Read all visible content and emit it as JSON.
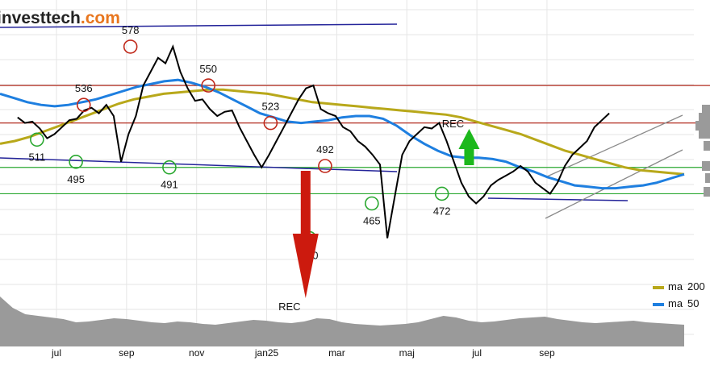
{
  "brand": {
    "name_a": "investtech",
    "name_b": ".com",
    "accent": "#e8761e"
  },
  "chart_data": {
    "type": "line",
    "title": "",
    "ylim": [
      420,
      600
    ],
    "x_ticks": [
      {
        "label": "jul",
        "i": 0
      },
      {
        "label": "sep",
        "i": 9
      },
      {
        "label": "nov",
        "i": 18
      },
      {
        "label": "jan25",
        "i": 27
      },
      {
        "label": "mar",
        "i": 36
      },
      {
        "label": "maj",
        "i": 45
      },
      {
        "label": "jul",
        "i": 54
      },
      {
        "label": "sep",
        "i": 63
      }
    ],
    "price_series": {
      "name": "",
      "color": "#000000",
      "values": [
        527,
        523,
        524,
        519,
        512,
        515,
        520,
        525,
        526,
        532,
        534,
        530,
        536,
        528,
        495,
        515,
        528,
        550,
        560,
        570,
        566,
        578,
        560,
        548,
        539,
        540,
        533,
        528,
        531,
        532,
        520,
        510,
        500,
        491,
        500,
        510,
        520,
        530,
        540,
        548,
        550,
        533,
        530,
        528,
        520,
        517,
        510,
        506,
        500,
        493,
        440,
        470,
        500,
        510,
        515,
        520,
        519,
        523,
        510,
        495,
        480,
        470,
        465,
        470,
        478,
        482,
        485,
        488,
        492,
        488,
        480,
        476,
        472,
        480,
        492,
        500,
        505,
        510,
        520,
        525,
        530
      ],
      "start_i": -5
    },
    "ma_series": [
      {
        "name": "ma 200",
        "color": "#b8a81a",
        "values": [
          508,
          510,
          513,
          517,
          521,
          525,
          529,
          533,
          537,
          540,
          542,
          544,
          545,
          546,
          547,
          547,
          546,
          545,
          544,
          542,
          540,
          538,
          537,
          536,
          535,
          534,
          533,
          532,
          531,
          530,
          529,
          527,
          524,
          521,
          518,
          515,
          511,
          507,
          503,
          500,
          497,
          494,
          491,
          489,
          488,
          487,
          486
        ]
      },
      {
        "name": "ma 50",
        "color": "#1e7fe0",
        "values": [
          544,
          541,
          538,
          536,
          535,
          536,
          538,
          540,
          543,
          546,
          549,
          551,
          553,
          554,
          552,
          549,
          545,
          540,
          535,
          530,
          527,
          524,
          523,
          524,
          525,
          527,
          528,
          528,
          526,
          521,
          514,
          508,
          503,
          499,
          498,
          498,
          497,
          495,
          491,
          488,
          484,
          481,
          478,
          477,
          476,
          476,
          477,
          478,
          480,
          483,
          486
        ]
      }
    ],
    "horizontal_levels": [
      {
        "value": 550,
        "color": "#b22b1e"
      },
      {
        "value": 523,
        "color": "#b22b1e"
      },
      {
        "value": 491,
        "color": "#2aa830"
      },
      {
        "value": 472,
        "color": "#2aa830"
      }
    ],
    "peak_labels": [
      {
        "label": "578",
        "value": 578,
        "i": 9.5,
        "kind": "top"
      },
      {
        "label": "536",
        "value": 536,
        "i": 3.5,
        "kind": "top"
      },
      {
        "label": "550",
        "value": 550,
        "i": 19.5,
        "kind": "top"
      },
      {
        "label": "523",
        "value": 523,
        "i": 27.5,
        "kind": "top"
      },
      {
        "label": "492",
        "value": 492,
        "i": 34.5,
        "kind": "top"
      },
      {
        "label": "511",
        "value": 511,
        "i": -2.5,
        "kind": "bottom"
      },
      {
        "label": "495",
        "value": 495,
        "i": 2.5,
        "kind": "bottom"
      },
      {
        "label": "491",
        "value": 491,
        "i": 14.5,
        "kind": "bottom"
      },
      {
        "label": "440",
        "value": 440,
        "i": 32.5,
        "kind": "bottom"
      },
      {
        "label": "465",
        "value": 465,
        "i": 40.5,
        "kind": "bottom"
      },
      {
        "label": "472",
        "value": 472,
        "i": 49.5,
        "kind": "bottom"
      }
    ],
    "signals": [
      {
        "label": "REC",
        "direction": "down",
        "color": "#cc1a0e",
        "i": 32
      },
      {
        "label": "REC",
        "direction": "up",
        "color": "#1cb81c",
        "i": 53
      }
    ],
    "legend": [
      {
        "label": "ma",
        "period": "200",
        "color": "#b8a81a"
      },
      {
        "label": "ma",
        "period": "50",
        "color": "#1e7fe0"
      }
    ],
    "volume": {
      "color": "#9a9a9a",
      "values": [
        62,
        48,
        40,
        38,
        36,
        34,
        30,
        31,
        33,
        35,
        34,
        32,
        30,
        29,
        31,
        30,
        28,
        27,
        29,
        31,
        33,
        32,
        30,
        29,
        31,
        35,
        34,
        30,
        28,
        27,
        26,
        27,
        28,
        30,
        34,
        38,
        36,
        32,
        30,
        31,
        33,
        35,
        36,
        37,
        34,
        32,
        30,
        29,
        30,
        31,
        32,
        30,
        29,
        28,
        27
      ]
    }
  }
}
